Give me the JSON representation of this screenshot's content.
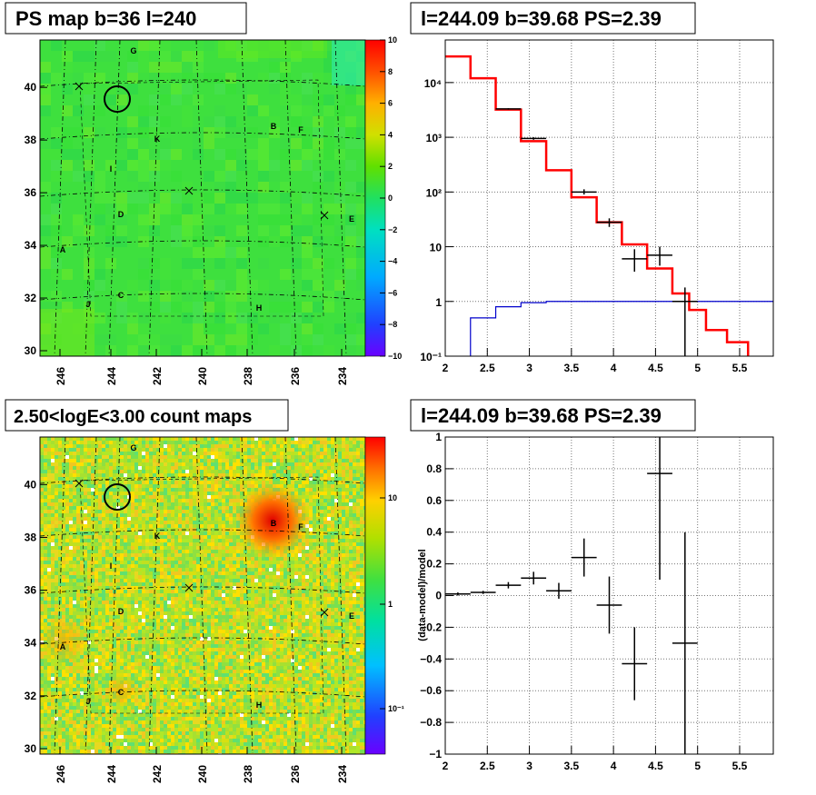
{
  "panels": {
    "ps_map": {
      "title": "PS map b=36 l=240"
    },
    "spectrum": {
      "title": "l=244.09 b=39.68 PS=2.39"
    },
    "count_map": {
      "title": "2.50<logE<3.00 count maps"
    },
    "residual": {
      "title": "l=244.09 b=39.68 PS=2.39"
    }
  },
  "chart_data": [
    {
      "type": "heatmap",
      "title": "PS map b=36 l=240",
      "x_ticks": [
        "246",
        "244",
        "242",
        "240",
        "238",
        "236",
        "234"
      ],
      "y_ticks": [
        "30",
        "32",
        "34",
        "36",
        "38",
        "40"
      ],
      "colorbar": {
        "min": -10,
        "max": 10,
        "ticks": [
          "10",
          "8",
          "6",
          "4",
          "2",
          "0",
          "−2",
          "−4",
          "−6",
          "−8",
          "−10"
        ]
      },
      "source_labels": [
        "G",
        "K",
        "B",
        "F",
        "I",
        "D",
        "E",
        "A",
        "J",
        "C",
        "H"
      ],
      "circle_marker": {
        "l": 243.4,
        "b": 39.5
      }
    },
    {
      "type": "line",
      "title": "l=244.09 b=39.68 PS=2.39",
      "x_ticks": [
        "2",
        "2.5",
        "3",
        "3.5",
        "4",
        "4.5",
        "5",
        "5.5"
      ],
      "y_ticks": [
        "10⁻¹",
        "1",
        "10",
        "10²",
        "10³",
        "10⁴"
      ],
      "xlim": [
        2,
        5.9
      ],
      "ylim": [
        0.1,
        60000
      ],
      "log_y": true,
      "grid": true,
      "series": [
        {
          "color": "#ff0000",
          "edges": [
            2.0,
            2.3,
            2.6,
            2.9,
            3.2,
            3.5,
            3.8,
            4.1,
            4.4,
            4.7,
            4.9,
            5.1,
            5.35,
            5.6,
            5.9
          ],
          "values": [
            30000,
            12000,
            3200,
            850,
            250,
            80,
            28,
            11,
            4,
            1.4,
            0.7,
            0.3,
            0.18,
            0.08
          ]
        },
        {
          "color": "#0000cc",
          "edges": [
            2.0,
            2.3,
            2.6,
            2.9,
            3.2,
            5.9
          ],
          "values": [
            0.08,
            0.5,
            0.8,
            0.95,
            1.0
          ]
        }
      ],
      "data_points": [
        {
          "x": 2.75,
          "y": 3300,
          "xerr": 0.15,
          "ylo": 3200,
          "yhi": 3400
        },
        {
          "x": 3.05,
          "y": 950,
          "xerr": 0.15,
          "ylo": 900,
          "yhi": 1000
        },
        {
          "x": 3.65,
          "y": 100,
          "xerr": 0.15,
          "ylo": 90,
          "yhi": 112
        },
        {
          "x": 3.95,
          "y": 28,
          "xerr": 0.15,
          "ylo": 23,
          "yhi": 33
        },
        {
          "x": 4.25,
          "y": 6,
          "xerr": 0.15,
          "ylo": 3.5,
          "yhi": 9
        },
        {
          "x": 4.55,
          "y": 7,
          "xerr": 0.15,
          "ylo": 4.5,
          "yhi": 10
        },
        {
          "x": 4.85,
          "y": 1,
          "xerr": 0.15,
          "ylo": 0.1,
          "yhi": 1.8
        }
      ]
    },
    {
      "type": "heatmap",
      "title": "2.50<logE<3.00 count maps",
      "x_ticks": [
        "246",
        "244",
        "242",
        "240",
        "238",
        "236",
        "234"
      ],
      "y_ticks": [
        "30",
        "32",
        "34",
        "36",
        "38",
        "40"
      ],
      "colorbar": {
        "log": true,
        "ticks": [
          "10",
          "1",
          "10⁻¹"
        ]
      },
      "source_labels": [
        "G",
        "K",
        "B",
        "F",
        "I",
        "D",
        "E",
        "A",
        "J",
        "C",
        "H"
      ],
      "circle_marker": {
        "l": 243.4,
        "b": 39.5
      }
    },
    {
      "type": "scatter",
      "title": "l=244.09 b=39.68 PS=2.39",
      "ylabel": "(data-model)/model",
      "x_ticks": [
        "2",
        "2.5",
        "3",
        "3.5",
        "4",
        "4.5",
        "5",
        "5.5"
      ],
      "y_ticks": [
        "1",
        "0.8",
        "0.6",
        "0.4",
        "0.2",
        "0",
        "−0.2",
        "−0.4",
        "−0.6",
        "−0.8",
        "−1"
      ],
      "xlim": [
        2,
        5.9
      ],
      "ylim": [
        -1,
        1
      ],
      "grid": true,
      "data_points": [
        {
          "x": 2.15,
          "y": 0.01,
          "xerr": 0.15,
          "yerr": 0.01
        },
        {
          "x": 2.45,
          "y": 0.02,
          "xerr": 0.15,
          "yerr": 0.01
        },
        {
          "x": 2.75,
          "y": 0.065,
          "xerr": 0.15,
          "yerr": 0.02
        },
        {
          "x": 3.05,
          "y": 0.11,
          "xerr": 0.15,
          "yerr": 0.04
        },
        {
          "x": 3.35,
          "y": 0.03,
          "xerr": 0.15,
          "yerr": 0.05
        },
        {
          "x": 3.65,
          "y": 0.24,
          "xerr": 0.15,
          "yerr": 0.12
        },
        {
          "x": 3.95,
          "y": -0.06,
          "xerr": 0.15,
          "yerr": 0.18
        },
        {
          "x": 4.25,
          "y": -0.43,
          "xerr": 0.15,
          "yerr": 0.23
        },
        {
          "x": 4.55,
          "y": 0.77,
          "xerr": 0.15,
          "yerr": 0.67
        },
        {
          "x": 4.85,
          "y": -0.3,
          "xerr": 0.15,
          "yerr": 0.7
        }
      ]
    }
  ]
}
